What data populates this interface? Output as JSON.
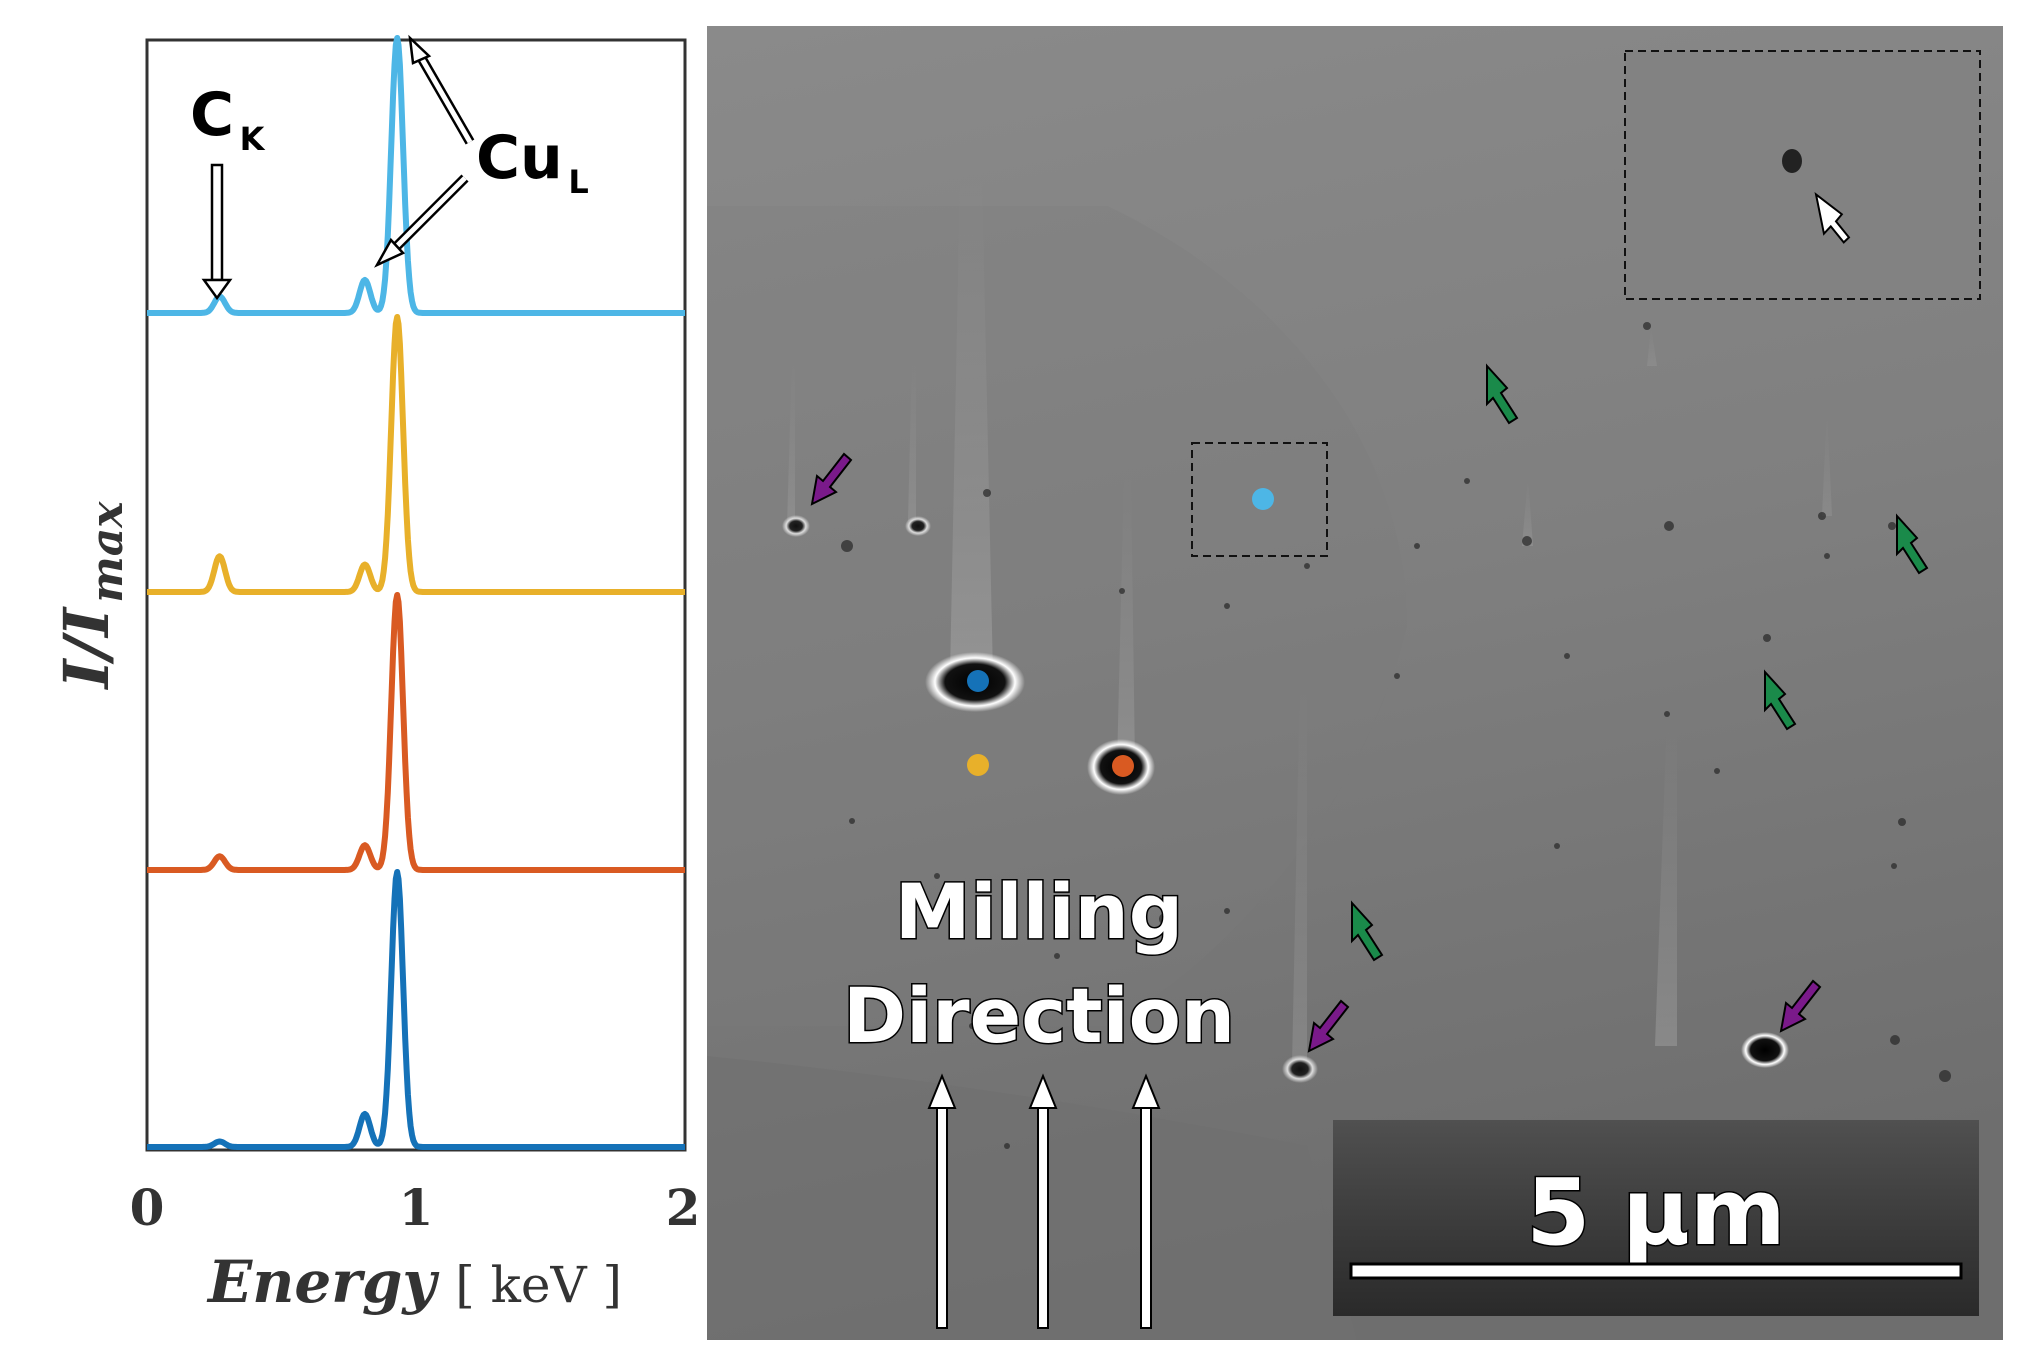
{
  "chart_data": {
    "type": "line",
    "xlabel": "Energy",
    "xunit": "[ keV ]",
    "ylabel": "I/I",
    "ylabel_sub": "max",
    "xlim": [
      0,
      2
    ],
    "x_ticks": [
      "0",
      "1",
      "2"
    ],
    "stacked": true,
    "annotations": [
      {
        "text": "C",
        "sub": "K",
        "energy_keV": 0.27
      },
      {
        "text": "Cu",
        "sub": "L",
        "energy_keV": [
          0.93,
          0.81
        ]
      }
    ],
    "series": [
      {
        "color": "#4db6e6",
        "baseline": 0.0,
        "peaks": [
          [
            0.27,
            0.06,
            0.02
          ],
          [
            0.81,
            0.12,
            0.02
          ],
          [
            0.93,
            1.0,
            0.022
          ]
        ]
      },
      {
        "color": "#e8b02a",
        "baseline": 0.0,
        "peaks": [
          [
            0.27,
            0.13,
            0.02
          ],
          [
            0.81,
            0.1,
            0.02
          ],
          [
            0.93,
            1.0,
            0.022
          ]
        ]
      },
      {
        "color": "#d95a22",
        "baseline": 0.0,
        "peaks": [
          [
            0.27,
            0.05,
            0.02
          ],
          [
            0.81,
            0.09,
            0.02
          ],
          [
            0.93,
            1.0,
            0.022
          ]
        ]
      },
      {
        "color": "#1572b8",
        "baseline": 0.0,
        "peaks": [
          [
            0.27,
            0.02,
            0.02
          ],
          [
            0.81,
            0.12,
            0.02
          ],
          [
            0.93,
            1.0,
            0.022
          ]
        ]
      }
    ]
  },
  "micrograph": {
    "labels": {
      "milling": "Milling",
      "direction": "Direction",
      "scale": "5 µm"
    },
    "marker_colors": {
      "light_blue": "#4db6e6",
      "blue": "#1572b8",
      "yellow": "#e8b02a",
      "orange": "#d95a22",
      "green_arrow": "#1a8a4a",
      "purple_arrow": "#7a1a8a",
      "white_arrow": "#ffffff"
    }
  }
}
